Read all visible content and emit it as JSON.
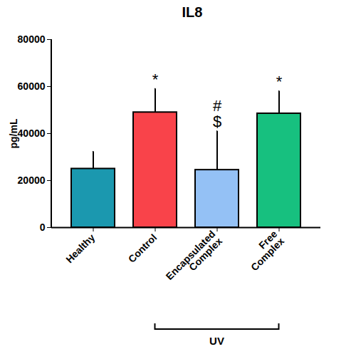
{
  "chart_data": {
    "type": "bar",
    "title": "IL8",
    "y_label": "pg/mL",
    "categories": [
      "Healthy",
      "Control",
      "Encapsulated Complex",
      "Free Complex"
    ],
    "values": [
      25000,
      49000,
      24500,
      48500
    ],
    "errors": [
      7300,
      10000,
      16500,
      9500
    ],
    "colors": [
      "#1b98af",
      "#f9434a",
      "#94c1f5",
      "#17c07f"
    ],
    "ylim": [
      0,
      80000
    ],
    "yticks": [
      0,
      20000,
      40000,
      60000,
      80000
    ],
    "grid": false,
    "annotations": [
      {
        "category": "Control",
        "text": [
          "*"
        ]
      },
      {
        "category": "Encapsulated Complex",
        "text": [
          "#",
          "$"
        ]
      },
      {
        "category": "Free Complex",
        "text": [
          "*"
        ]
      }
    ],
    "groups": [
      {
        "label": "UV",
        "categories": [
          "Control",
          "Encapsulated Complex",
          "Free Complex"
        ]
      }
    ]
  }
}
